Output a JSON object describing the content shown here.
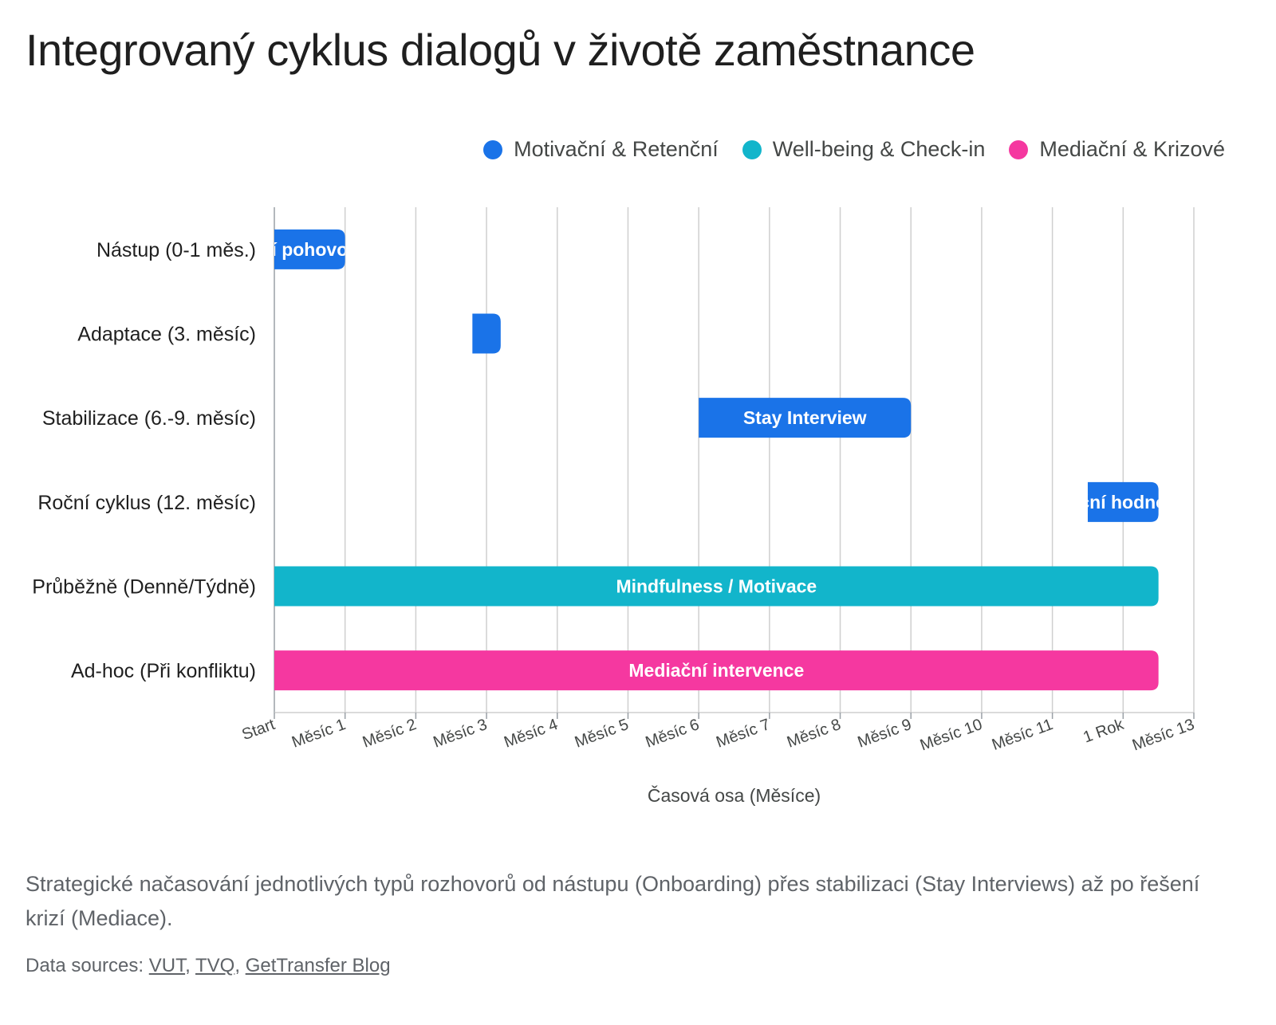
{
  "title": "Integrovaný cyklus dialogů v životě zaměstnance",
  "caption": "Strategické načasování jednotlivých typů rozhovorů od nástupu (Onboarding) přes stabilizaci (Stay Interviews) až po řešení krizí (Mediace).",
  "sources": {
    "label": "Data sources:",
    "links": [
      "VUT",
      "TVQ",
      "GetTransfer Blog"
    ]
  },
  "colors": {
    "motivacni": "#1a73e8",
    "wellbeing": "#12b5cb",
    "mediacni": "#f538a0"
  },
  "chart_data": {
    "type": "bar",
    "orientation": "horizontal-range",
    "title": "Integrovaný cyklus dialogů v životě zaměstnance",
    "xlabel": "Časová osa (Měsíce)",
    "ylabel": "",
    "xlim": [
      0,
      13
    ],
    "grid": true,
    "legend_position": "top-right",
    "x_ticks": [
      "Start",
      "Měsíc 1",
      "Měsíc 2",
      "Měsíc 3",
      "Měsíc 4",
      "Měsíc 5",
      "Měsíc 6",
      "Měsíc 7",
      "Měsíc 8",
      "Měsíc 9",
      "Měsíc 10",
      "Měsíc 11",
      "1 Rok",
      "Měsíc 13"
    ],
    "categories": [
      "Nástup (0-1 měs.)",
      "Adaptace (3. měsíc)",
      "Stabilizace (6.-9. měsíc)",
      "Roční cyklus (12. měsíc)",
      "Průběžně (Denně/Týdně)",
      "Ad-hoc (Při konfliktu)"
    ],
    "series": [
      {
        "name": "Motivační & Retenční",
        "color": "#1a73e8"
      },
      {
        "name": "Well-being & Check-in",
        "color": "#12b5cb"
      },
      {
        "name": "Mediační & Krizové",
        "color": "#f538a0"
      }
    ],
    "bars": [
      {
        "category": "Nástup (0-1 měs.)",
        "series": "Motivační & Retenční",
        "start": 0,
        "end": 1,
        "label": "í pohovo"
      },
      {
        "category": "Adaptace (3. měsíc)",
        "series": "Motivační & Retenční",
        "start": 2.8,
        "end": 3.2,
        "label": ""
      },
      {
        "category": "Stabilizace (6.-9. měsíc)",
        "series": "Motivační & Retenční",
        "start": 6,
        "end": 9,
        "label": "Stay Interview"
      },
      {
        "category": "Roční cyklus (12. měsíc)",
        "series": "Motivační & Retenční",
        "start": 11.5,
        "end": 12.5,
        "label": "ční hodno"
      },
      {
        "category": "Průběžně (Denně/Týdně)",
        "series": "Well-being & Check-in",
        "start": 0,
        "end": 12.5,
        "label": "Mindfulness / Motivace"
      },
      {
        "category": "Ad-hoc (Při konfliktu)",
        "series": "Mediační & Krizové",
        "start": 0,
        "end": 12.5,
        "label": "Mediační intervence"
      }
    ]
  }
}
